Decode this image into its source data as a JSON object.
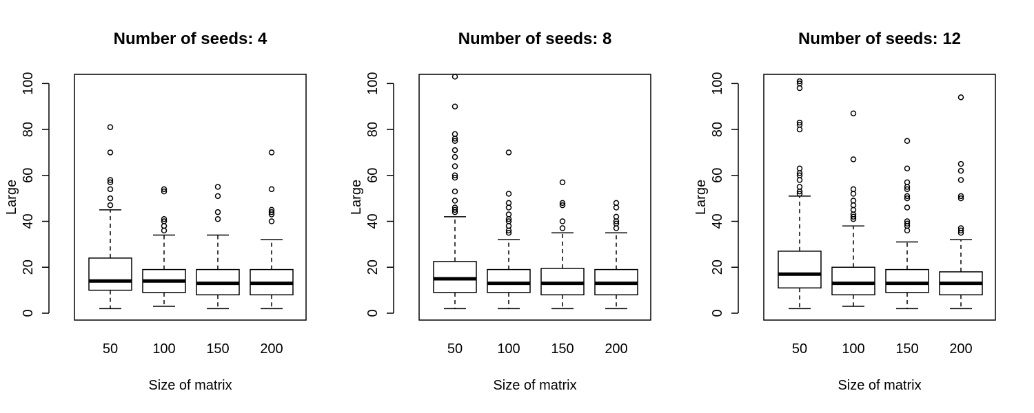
{
  "chart_data": [
    {
      "type": "boxplot",
      "title": "Number of seeds: 4",
      "xlabel": "Size of matrix",
      "ylabel": "Large",
      "ylim": [
        -3,
        104
      ],
      "yticks": [
        0,
        20,
        40,
        60,
        80,
        100
      ],
      "categories": [
        "50",
        "100",
        "150",
        "200"
      ],
      "boxes": [
        {
          "min": 2,
          "q1": 10,
          "median": 14,
          "q3": 24,
          "max": 45,
          "outliers": [
            47,
            50,
            54,
            57,
            58,
            70,
            81
          ]
        },
        {
          "min": 3,
          "q1": 9,
          "median": 14,
          "q3": 19,
          "max": 34,
          "outliers": [
            36,
            38,
            40,
            41,
            53,
            54
          ]
        },
        {
          "min": 2,
          "q1": 8,
          "median": 13,
          "q3": 19,
          "max": 34,
          "outliers": [
            41,
            44,
            51,
            55
          ]
        },
        {
          "min": 2,
          "q1": 8,
          "median": 13,
          "q3": 19,
          "max": 32,
          "outliers": [
            40,
            43,
            44,
            45,
            54,
            70
          ]
        }
      ]
    },
    {
      "type": "boxplot",
      "title": "Number of seeds: 8",
      "xlabel": "Size of matrix",
      "ylabel": "Large",
      "ylim": [
        -3,
        104
      ],
      "yticks": [
        0,
        20,
        40,
        60,
        80,
        100
      ],
      "categories": [
        "50",
        "100",
        "150",
        "200"
      ],
      "boxes": [
        {
          "min": 2,
          "q1": 9,
          "median": 15,
          "q3": 22.5,
          "max": 42,
          "outliers": [
            44,
            45,
            46,
            49,
            53,
            59,
            60,
            64,
            68,
            71,
            75,
            76,
            78,
            90,
            103
          ]
        },
        {
          "min": 2,
          "q1": 9,
          "median": 13,
          "q3": 19,
          "max": 32,
          "outliers": [
            35,
            36,
            38,
            40,
            41,
            43,
            46,
            48,
            52,
            70
          ]
        },
        {
          "min": 2,
          "q1": 8,
          "median": 13,
          "q3": 19.5,
          "max": 35,
          "outliers": [
            37,
            40,
            47,
            48,
            57
          ]
        },
        {
          "min": 2,
          "q1": 8,
          "median": 13,
          "q3": 19,
          "max": 35,
          "outliers": [
            37,
            39,
            40,
            42,
            46,
            48
          ]
        }
      ]
    },
    {
      "type": "boxplot",
      "title": "Number of seeds: 12",
      "xlabel": "Size of matrix",
      "ylabel": "Large",
      "ylim": [
        -3,
        104
      ],
      "yticks": [
        0,
        20,
        40,
        60,
        80,
        100
      ],
      "categories": [
        "50",
        "100",
        "150",
        "200"
      ],
      "boxes": [
        {
          "min": 2,
          "q1": 11,
          "median": 17,
          "q3": 27,
          "max": 51,
          "outliers": [
            52,
            53,
            55,
            58,
            60,
            61,
            63,
            80,
            82,
            83,
            98,
            100,
            101
          ]
        },
        {
          "min": 3,
          "q1": 8,
          "median": 13,
          "q3": 20,
          "max": 38,
          "outliers": [
            41,
            42,
            43,
            45,
            47,
            49,
            52,
            54,
            67,
            87
          ]
        },
        {
          "min": 2,
          "q1": 9,
          "median": 13,
          "q3": 19,
          "max": 31,
          "outliers": [
            36,
            38,
            39,
            40,
            46,
            50,
            51,
            54,
            55,
            57,
            63,
            75
          ]
        },
        {
          "min": 2,
          "q1": 8,
          "median": 13,
          "q3": 18,
          "max": 32,
          "outliers": [
            35,
            36,
            37,
            50,
            51,
            58,
            62,
            65,
            94
          ]
        }
      ]
    }
  ]
}
